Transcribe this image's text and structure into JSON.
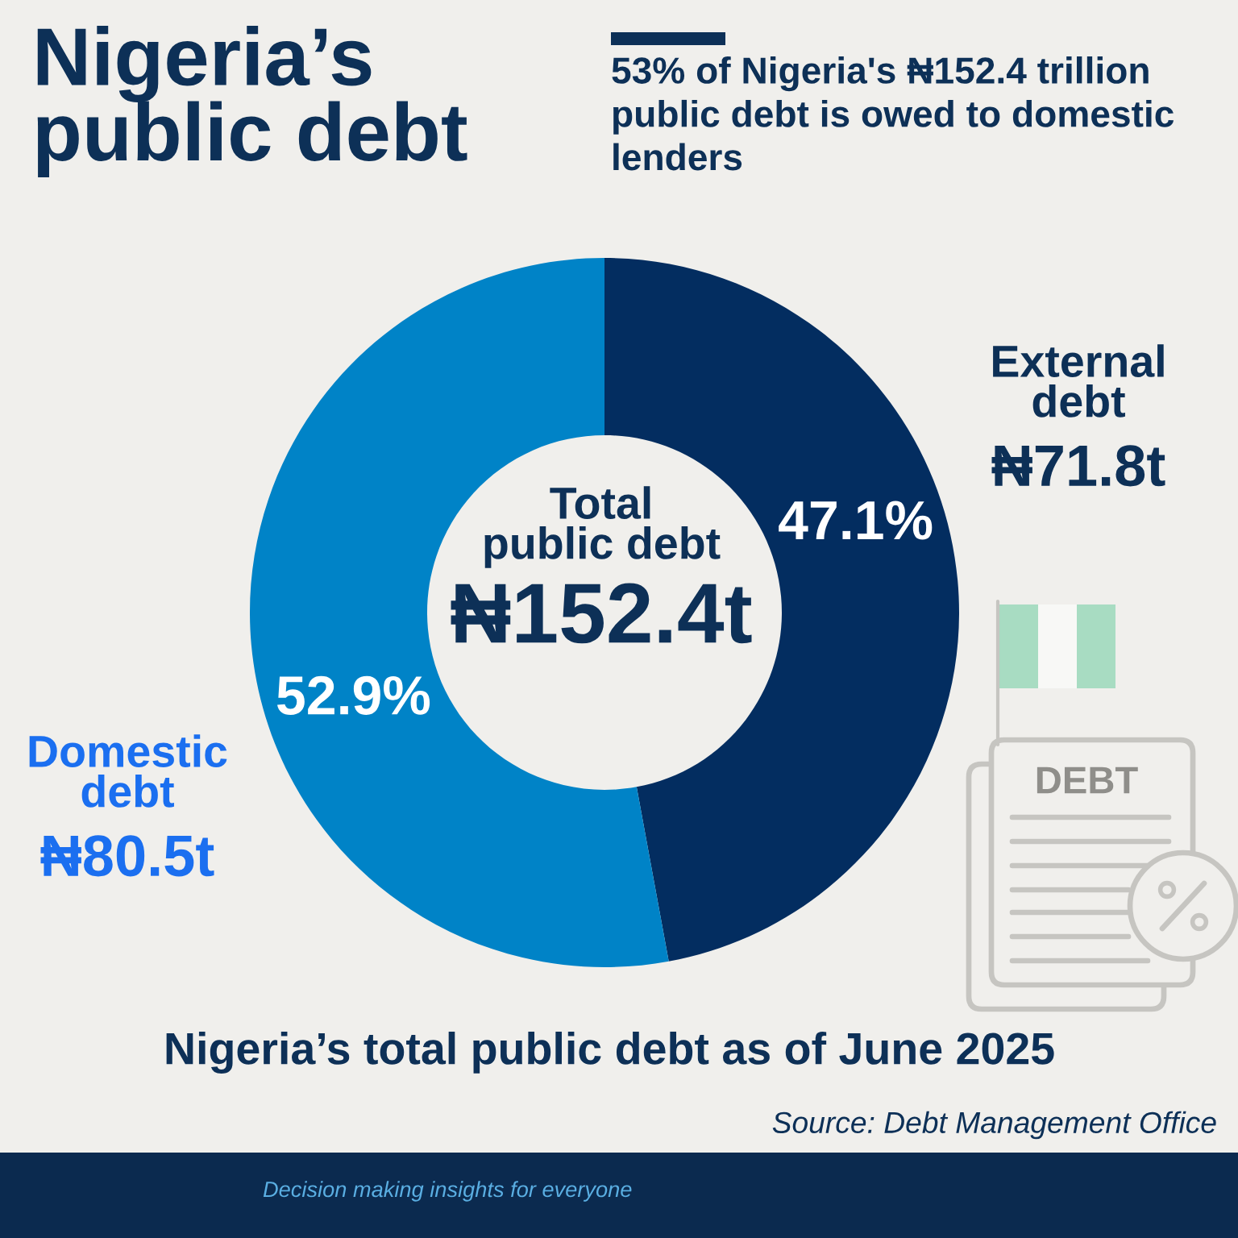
{
  "chart_data": {
    "type": "donut",
    "title": "Nigeria’s\npublic debt",
    "subtitle": "53% of Nigeria's ₦152.4 trillion\npublic debt is owed to domestic\nlenders",
    "categories": [
      "External debt",
      "Domestic debt"
    ],
    "values": [
      47.1,
      52.9
    ],
    "colors": [
      "#032d60",
      "#0083c7"
    ],
    "value_labels": [
      "47.1%",
      "52.9%"
    ],
    "annotations": [
      "Total\npublic debt",
      "₦152.4t",
      "₦71.8t",
      "₦80.5t",
      "Nigeria’s total public debt as of June 2025",
      "Source: Debt Management Office",
      "Decision making insights for everyone",
      "DEBT"
    ]
  }
}
